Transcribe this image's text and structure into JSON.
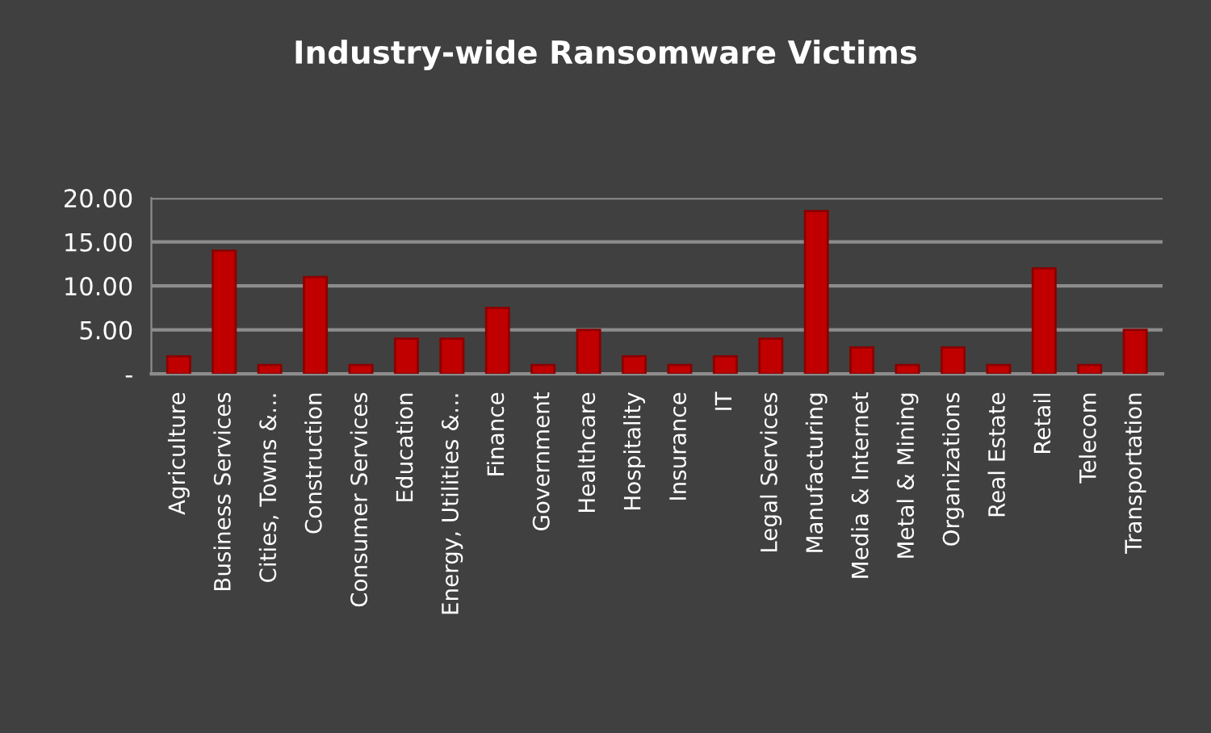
{
  "chart_data": {
    "type": "bar",
    "title": "Industry-wide Ransomware Victims",
    "categories": [
      "Agriculture",
      "Business Services",
      "Cities, Towns &…",
      "Construction",
      "Consumer Services",
      "Education",
      "Energy, Utilities &…",
      "Finance",
      "Government",
      "Healthcare",
      "Hospitality",
      "Insurance",
      "IT",
      "Legal Services",
      "Manufacturing",
      "Media & Internet",
      "Metal & Mining",
      "Organizations",
      "Real Estate",
      "Retail",
      "Telecom",
      "Transportation"
    ],
    "values": [
      2,
      14,
      1,
      11,
      1,
      4,
      4,
      7.5,
      1,
      5,
      2,
      1,
      2,
      4,
      18.5,
      3,
      1,
      3,
      1,
      12,
      1,
      5
    ],
    "color": "#c00000",
    "ylim": [
      0,
      20
    ],
    "yticks": [
      {
        "value": 0,
        "label": "-"
      },
      {
        "value": 5,
        "label": "5.00"
      },
      {
        "value": 10,
        "label": "10.00"
      },
      {
        "value": 15,
        "label": "15.00"
      },
      {
        "value": 20,
        "label": "20.00"
      }
    ],
    "grid": "y"
  }
}
